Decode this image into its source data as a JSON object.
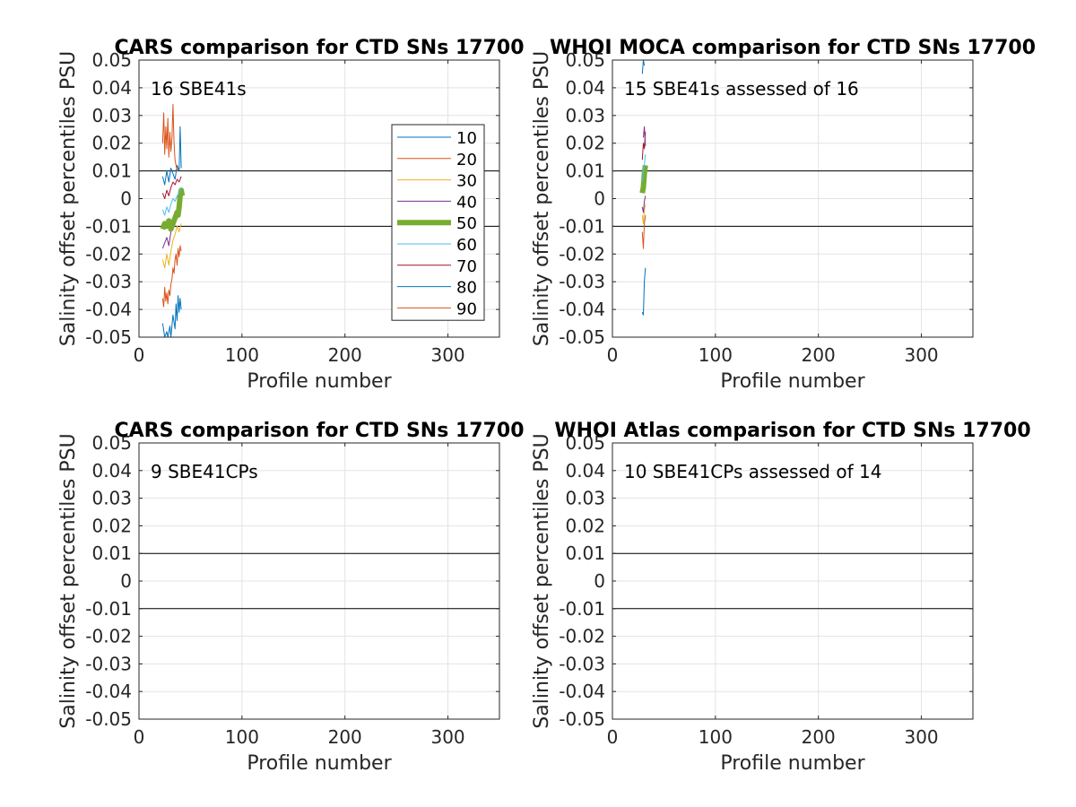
{
  "figure": {
    "background": "#ffffff"
  },
  "chart_data": [
    {
      "type": "line",
      "title": "CARS comparison for CTD SNs 17700",
      "xlabel": "Profile number",
      "ylabel": "Salinity offset percentiles PSU",
      "xlim": [
        0,
        350
      ],
      "ylim": [
        -0.05,
        0.05
      ],
      "xticks": [
        0,
        100,
        200,
        300
      ],
      "yticks": [
        -0.05,
        -0.04,
        -0.03,
        -0.02,
        -0.01,
        0,
        0.01,
        0.02,
        0.03,
        0.04,
        0.05
      ],
      "reference_lines": [
        0.01,
        -0.01
      ],
      "grid": true,
      "annotation": "16 SBE41s",
      "legend": {
        "position": "top-right",
        "entries": [
          {
            "label": "10",
            "color": "#0072bd"
          },
          {
            "label": "20",
            "color": "#d95319"
          },
          {
            "label": "30",
            "color": "#edb120"
          },
          {
            "label": "40",
            "color": "#7e2f8e"
          },
          {
            "label": "50",
            "color": "#77ac30"
          },
          {
            "label": "60",
            "color": "#4dbeee"
          },
          {
            "label": "70",
            "color": "#a2142f"
          },
          {
            "label": "80",
            "color": "#0072bd"
          },
          {
            "label": "90",
            "color": "#d95319"
          }
        ]
      },
      "series": [
        {
          "name": "10",
          "color": "#0072bd",
          "width": 1,
          "x": [
            23,
            25,
            27,
            28,
            30,
            31,
            33,
            35,
            36,
            37,
            38,
            39,
            40,
            41
          ],
          "y": [
            -0.045,
            -0.05,
            -0.048,
            -0.05,
            -0.046,
            -0.05,
            -0.042,
            -0.047,
            -0.038,
            -0.044,
            -0.035,
            -0.041,
            -0.036,
            -0.04
          ]
        },
        {
          "name": "20",
          "color": "#d95319",
          "width": 1,
          "x": [
            23,
            24,
            25,
            26,
            27,
            28,
            29,
            30,
            31,
            32,
            33,
            34,
            35,
            36,
            37,
            38,
            39,
            40,
            41
          ],
          "y": [
            -0.036,
            -0.039,
            -0.032,
            -0.037,
            -0.034,
            -0.038,
            -0.033,
            -0.035,
            -0.031,
            -0.029,
            -0.025,
            -0.027,
            -0.022,
            -0.02,
            -0.024,
            -0.018,
            -0.021,
            -0.017,
            -0.019
          ]
        },
        {
          "name": "30",
          "color": "#edb120",
          "width": 1,
          "x": [
            23,
            25,
            27,
            29,
            31,
            33,
            35,
            37,
            39,
            41
          ],
          "y": [
            -0.022,
            -0.025,
            -0.02,
            -0.024,
            -0.019,
            -0.015,
            -0.013,
            -0.01,
            -0.012,
            -0.009
          ]
        },
        {
          "name": "40",
          "color": "#7e2f8e",
          "width": 1,
          "x": [
            23,
            25,
            27,
            29,
            31,
            33,
            35,
            37,
            39,
            41
          ],
          "y": [
            -0.018,
            -0.016,
            -0.014,
            -0.017,
            -0.012,
            -0.01,
            -0.008,
            -0.006,
            -0.005,
            -0.003
          ]
        },
        {
          "name": "50",
          "color": "#77ac30",
          "width": 6,
          "x": [
            23,
            25,
            27,
            29,
            31,
            33,
            35,
            37,
            38,
            39,
            40,
            41,
            42
          ],
          "y": [
            -0.011,
            -0.009,
            -0.01,
            -0.008,
            -0.011,
            -0.009,
            -0.007,
            -0.005,
            -0.006,
            -0.003,
            0.001,
            0.003,
            0.001
          ]
        },
        {
          "name": "60",
          "color": "#4dbeee",
          "width": 1,
          "x": [
            23,
            25,
            27,
            29,
            31,
            33,
            35,
            37,
            39,
            41
          ],
          "y": [
            -0.004,
            -0.006,
            -0.003,
            -0.005,
            -0.002,
            0.0,
            -0.001,
            0.001,
            0.002,
            0.004
          ]
        },
        {
          "name": "70",
          "color": "#a2142f",
          "width": 1,
          "x": [
            23,
            25,
            27,
            29,
            31,
            33,
            35,
            37,
            39,
            41
          ],
          "y": [
            0.002,
            0.0,
            0.003,
            0.001,
            0.004,
            0.006,
            0.005,
            0.007,
            0.006,
            0.008
          ]
        },
        {
          "name": "80",
          "color": "#0072bd",
          "width": 1,
          "x": [
            23,
            25,
            27,
            29,
            31,
            33,
            35,
            37,
            39,
            40,
            41
          ],
          "y": [
            0.008,
            0.005,
            0.01,
            0.006,
            0.011,
            0.009,
            0.007,
            0.012,
            0.01,
            0.026,
            0.011
          ]
        },
        {
          "name": "90",
          "color": "#d95319",
          "width": 1,
          "x": [
            23,
            24,
            25,
            26,
            27,
            28,
            29,
            30,
            31,
            32,
            33,
            34,
            35,
            36,
            37,
            38
          ],
          "y": [
            0.02,
            0.031,
            0.016,
            0.026,
            0.018,
            0.029,
            0.015,
            0.024,
            0.017,
            0.022,
            0.034,
            0.02,
            0.014,
            0.012,
            0.01,
            0.011
          ]
        }
      ]
    },
    {
      "type": "line",
      "title": "WHOI MOCA comparison for CTD SNs 17700",
      "xlabel": "Profile number",
      "ylabel": "Salinity offset percentiles PSU",
      "xlim": [
        0,
        350
      ],
      "ylim": [
        -0.05,
        0.05
      ],
      "xticks": [
        0,
        100,
        200,
        300
      ],
      "yticks": [
        -0.05,
        -0.04,
        -0.03,
        -0.02,
        -0.01,
        0,
        0.01,
        0.02,
        0.03,
        0.04,
        0.05
      ],
      "reference_lines": [
        0.01,
        -0.01
      ],
      "grid": true,
      "annotation": "15 SBE41s assessed of 16",
      "series": [
        {
          "name": "10",
          "color": "#0072bd",
          "width": 1,
          "x": [
            29,
            30,
            31,
            32
          ],
          "y": [
            -0.041,
            -0.042,
            -0.03,
            -0.025
          ]
        },
        {
          "name": "20",
          "color": "#d95319",
          "width": 1,
          "x": [
            29,
            30,
            31,
            32
          ],
          "y": [
            -0.012,
            -0.018,
            -0.009,
            -0.006
          ]
        },
        {
          "name": "30",
          "color": "#edb120",
          "width": 1,
          "x": [
            29,
            30,
            31,
            32
          ],
          "y": [
            -0.006,
            -0.009,
            -0.004,
            -0.002
          ]
        },
        {
          "name": "40",
          "color": "#7e2f8e",
          "width": 1,
          "x": [
            29,
            30,
            31,
            32
          ],
          "y": [
            -0.003,
            -0.005,
            -0.001,
            0.001
          ]
        },
        {
          "name": "50",
          "color": "#77ac30",
          "width": 6,
          "x": [
            29,
            30,
            31,
            32
          ],
          "y": [
            0.002,
            0.004,
            0.009,
            0.012
          ]
        },
        {
          "name": "60",
          "color": "#4dbeee",
          "width": 1,
          "x": [
            29,
            30,
            31,
            32
          ],
          "y": [
            0.006,
            0.01,
            0.012,
            0.016
          ]
        },
        {
          "name": "70",
          "color": "#a2142f",
          "width": 1,
          "x": [
            29,
            30,
            31,
            32
          ],
          "y": [
            0.014,
            0.02,
            0.018,
            0.024
          ]
        },
        {
          "name": "80",
          "color": "#0072bd",
          "width": 1,
          "x": [
            29,
            30,
            31
          ],
          "y": [
            0.045,
            0.05,
            0.048
          ]
        },
        {
          "name": "90",
          "color": "#7e2f8e",
          "width": 1,
          "x": [
            30,
            31,
            32
          ],
          "y": [
            0.022,
            0.026,
            0.019
          ]
        }
      ]
    },
    {
      "type": "line",
      "title": "CARS comparison for CTD SNs 17700",
      "xlabel": "Profile number",
      "ylabel": "Salinity offset percentiles PSU",
      "xlim": [
        0,
        350
      ],
      "ylim": [
        -0.05,
        0.05
      ],
      "xticks": [
        0,
        100,
        200,
        300
      ],
      "yticks": [
        -0.05,
        -0.04,
        -0.03,
        -0.02,
        -0.01,
        0,
        0.01,
        0.02,
        0.03,
        0.04,
        0.05
      ],
      "reference_lines": [
        0.01,
        -0.01
      ],
      "grid": true,
      "annotation": "9 SBE41CPs",
      "series": []
    },
    {
      "type": "line",
      "title": "WHOI Atlas comparison for CTD SNs 17700",
      "xlabel": "Profile number",
      "ylabel": "Salinity offset percentiles PSU",
      "xlim": [
        0,
        350
      ],
      "ylim": [
        -0.05,
        0.05
      ],
      "xticks": [
        0,
        100,
        200,
        300
      ],
      "yticks": [
        -0.05,
        -0.04,
        -0.03,
        -0.02,
        -0.01,
        0,
        0.01,
        0.02,
        0.03,
        0.04,
        0.05
      ],
      "reference_lines": [
        0.01,
        -0.01
      ],
      "grid": true,
      "annotation": "10 SBE41CPs assessed of 14",
      "series": []
    }
  ]
}
